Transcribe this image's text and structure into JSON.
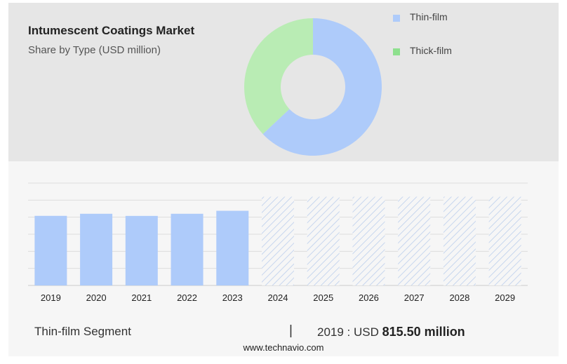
{
  "header": {
    "title": "Intumescent Coatings Market",
    "subtitle": "Share by Type (USD million)"
  },
  "legend": [
    {
      "label": "Thin-film",
      "color": "#aecbfa"
    },
    {
      "label": "Thick-film",
      "color": "#8ee08e"
    }
  ],
  "chart_data": [
    {
      "type": "pie",
      "variant": "donut",
      "title": "Share by Type (USD million)",
      "labels": [
        "Thin-film",
        "Thick-film"
      ],
      "values": [
        63,
        37
      ],
      "colors": [
        "#aecbfa",
        "#b9ecb4"
      ]
    },
    {
      "type": "bar",
      "categories": [
        "2019",
        "2020",
        "2021",
        "2022",
        "2023",
        "2024",
        "2025",
        "2026",
        "2027",
        "2028",
        "2029"
      ],
      "values": [
        815.5,
        840,
        815,
        840,
        875,
        null,
        null,
        null,
        null,
        null,
        null
      ],
      "forecast_categories": [
        "2024",
        "2025",
        "2026",
        "2027",
        "2028",
        "2029"
      ],
      "forecast_level": 1040,
      "ylim": [
        0,
        1200
      ],
      "grid": true,
      "bar_color": "#aecbfa",
      "forecast_style": "hatched"
    }
  ],
  "footer": {
    "segment_label": "Thin-film Segment",
    "separator": "|",
    "value_prefix": "2019 : USD",
    "value_bold": "815.50 million",
    "website": "www.technavio.com"
  }
}
